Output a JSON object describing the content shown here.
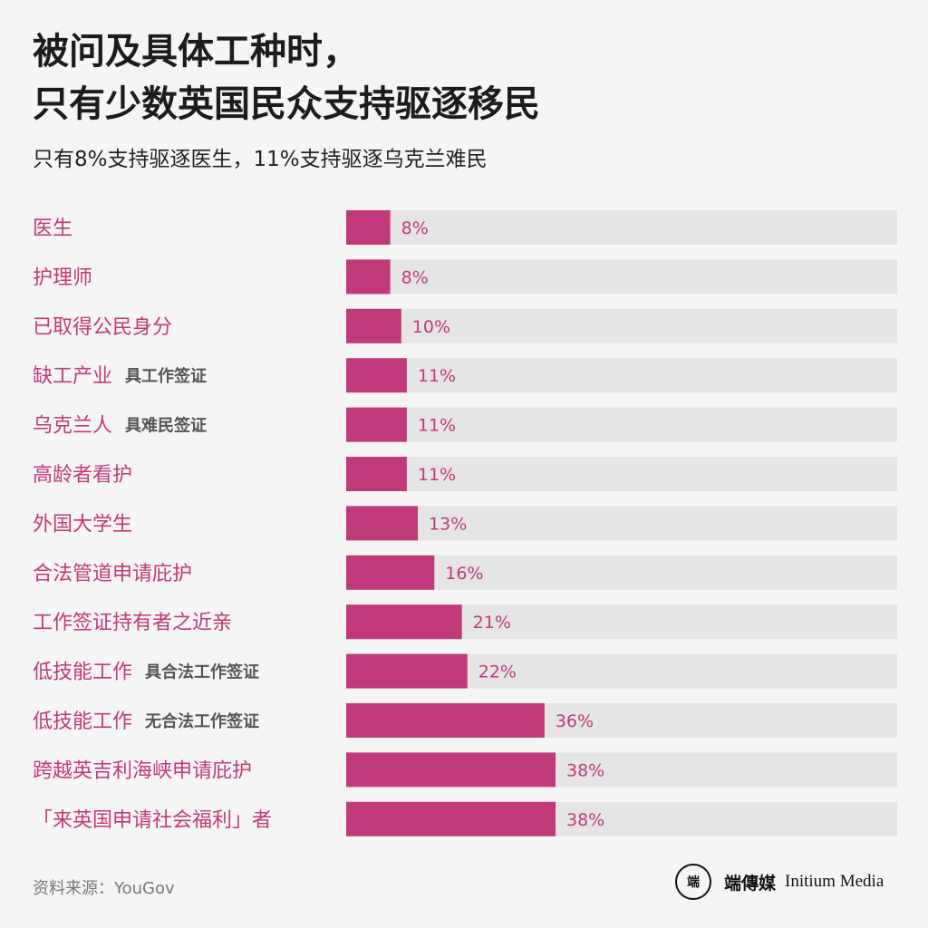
{
  "header": {
    "title_line1": "被问及具体工种时，",
    "title_line2": "只有少数英国民众支持驱逐移民",
    "subtitle": "只有8%支持驱逐医生，11%支持驱逐乌克兰难民"
  },
  "footer": {
    "source": "资料来源：YouGov",
    "brand_cn": "端傳媒",
    "brand_en": "Initium Media",
    "logo_glyph": "端"
  },
  "colors": {
    "bar": "#c0397a",
    "track": "#e5e5e5",
    "label": "#c0397a",
    "note": "#555555",
    "background": "#f5f5f5"
  },
  "chart_data": {
    "type": "bar",
    "orientation": "horizontal",
    "title": "被问及具体工种时，只有少数英国民众支持驱逐移民",
    "subtitle": "只有8%支持驱逐医生，11%支持驱逐乌克兰难民",
    "xlim": [
      0,
      100
    ],
    "unit": "%",
    "categories": [
      "医生",
      "护理师",
      "已取得公民身分",
      "缺工产业",
      "乌克兰人",
      "高龄者看护",
      "外国大学生",
      "合法管道申请庇护",
      "工作签证持有者之近亲",
      "低技能工作",
      "低技能工作",
      "跨越英吉利海峡申请庇护",
      "「来英国申请社会福利」者"
    ],
    "notes": [
      "",
      "",
      "",
      "具工作签证",
      "具难民签证",
      "",
      "",
      "",
      "",
      "具合法工作签证",
      "无合法工作签证",
      "",
      ""
    ],
    "values": [
      8,
      8,
      10,
      11,
      11,
      11,
      13,
      16,
      21,
      22,
      36,
      38,
      38
    ],
    "value_labels": [
      "8%",
      "8%",
      "10%",
      "11%",
      "11%",
      "11%",
      "13%",
      "16%",
      "21%",
      "22%",
      "36%",
      "38%",
      "38%"
    ]
  }
}
